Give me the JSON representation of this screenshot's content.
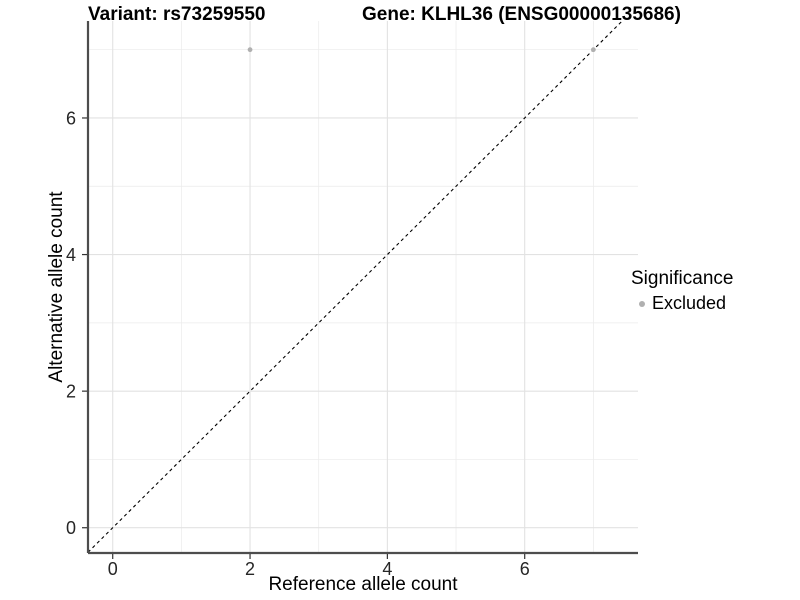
{
  "chart_data": {
    "type": "scatter",
    "title_left": "Variant: rs73259550",
    "title_right": "Gene: KLHL36 (ENSG00000135686)",
    "xlabel": "Reference allele count",
    "ylabel": "Alternative allele count",
    "x_ticks": [
      0,
      2,
      4,
      6
    ],
    "y_ticks": [
      0,
      2,
      4,
      6
    ],
    "x_minor": [
      1,
      3,
      5,
      7
    ],
    "y_minor": [
      1,
      3,
      5,
      7
    ],
    "xlim": [
      -0.36,
      7.65
    ],
    "ylim": [
      -0.37,
      7.42
    ],
    "grid": true,
    "identity_line": {
      "slope": 1,
      "intercept": 0,
      "style": "dashed",
      "color": "#000000"
    },
    "points": [
      {
        "x": 2,
        "y": 7,
        "significance": "Excluded"
      },
      {
        "x": 7,
        "y": 7,
        "significance": "Excluded"
      }
    ],
    "legend": {
      "title": "Significance",
      "position": "right",
      "items": [
        {
          "label": "Excluded",
          "color": "#b0b0b0"
        }
      ]
    },
    "colors": {
      "point": "#b0b0b0",
      "grid_major": "#e2e2e2",
      "grid_minor": "#ebebeb",
      "axis_line": "#4d4d4d",
      "tick_mark": "#333333",
      "tick_text": "#262626"
    }
  }
}
